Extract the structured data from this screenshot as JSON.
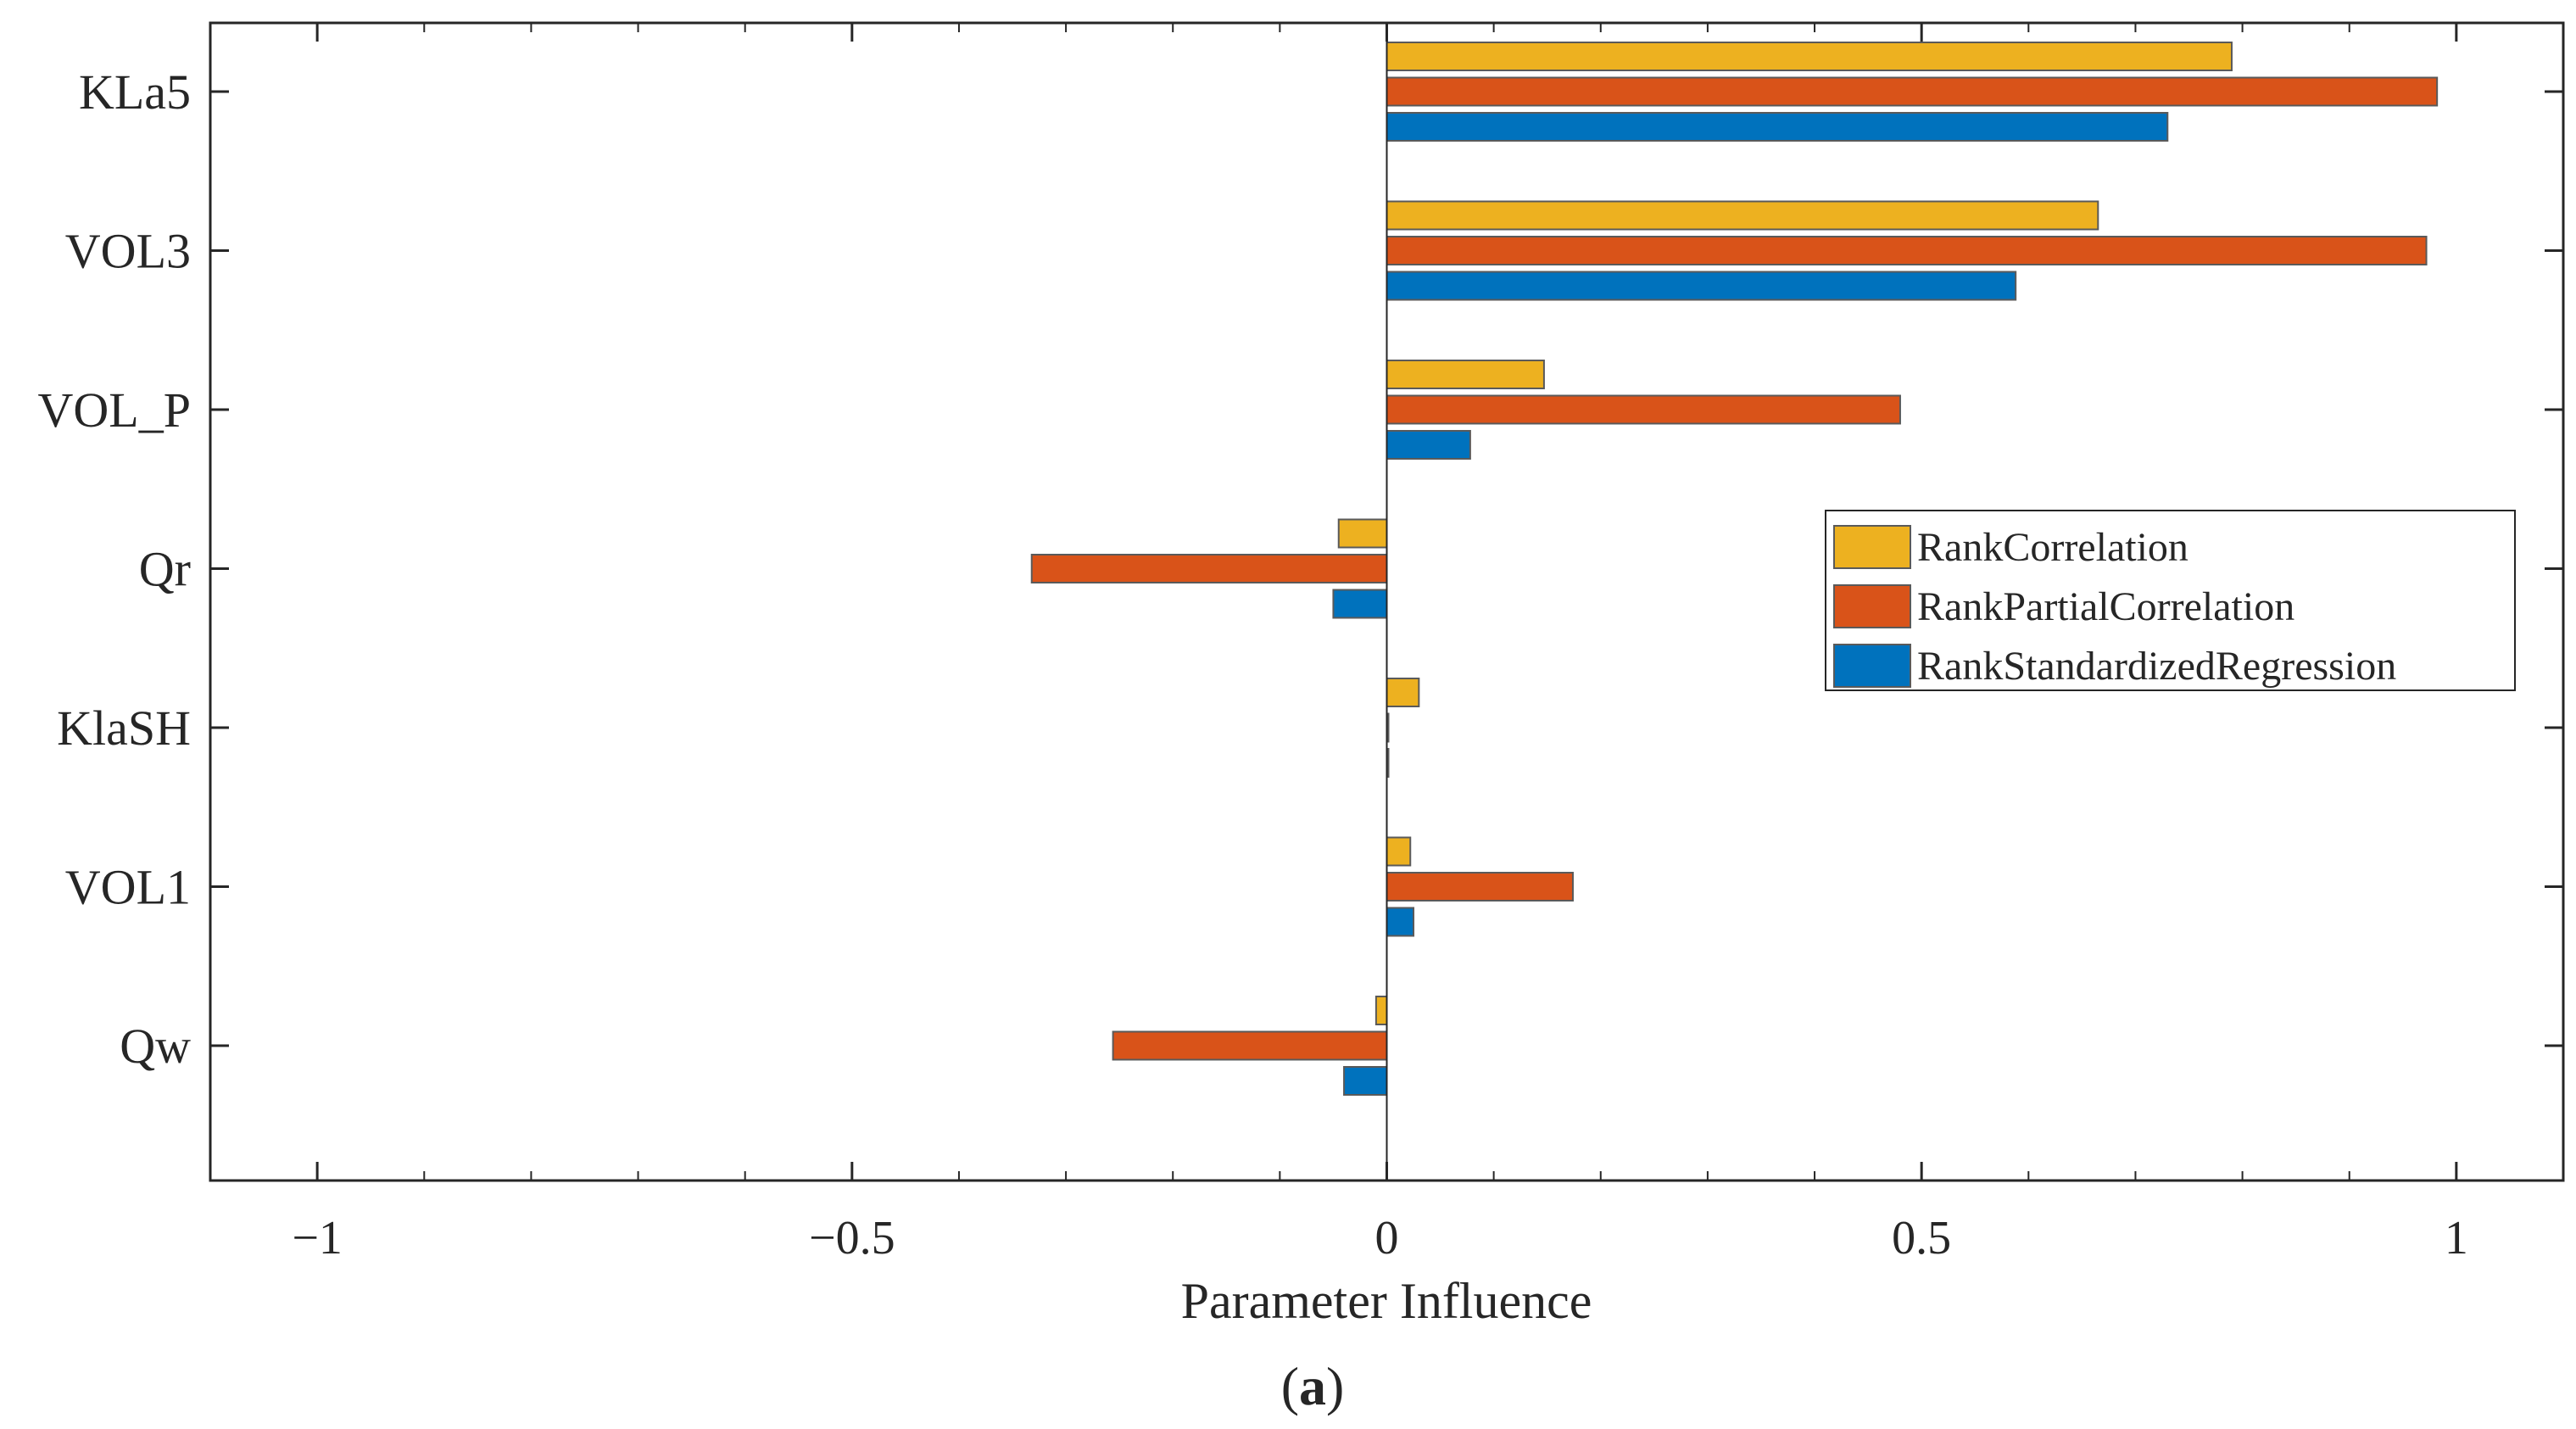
{
  "chart_data": {
    "type": "bar",
    "orientation": "horizontal",
    "title": "",
    "xlabel": "Parameter Influence",
    "ylabel": "",
    "caption": "(a)",
    "caption_letter": "a",
    "xlim": [
      -1.1,
      1.1
    ],
    "xticks": [
      -1,
      -0.5,
      0,
      0.5,
      1
    ],
    "xtick_labels": [
      "−1",
      "−0.5",
      "0",
      "0.5",
      "1"
    ],
    "grid": false,
    "legend_position": "top-right",
    "categories": [
      "KLa5",
      "VOL3",
      "VOL_P",
      "Qr",
      "KlaSH",
      "VOL1",
      "Qw"
    ],
    "series": [
      {
        "name": "RankCorrelation",
        "color": "#EDB120",
        "values": [
          0.79,
          0.665,
          0.147,
          -0.045,
          0.03,
          0.022,
          -0.01
        ]
      },
      {
        "name": "RankPartialCorrelation",
        "color": "#D95319",
        "values": [
          0.982,
          0.972,
          0.48,
          -0.332,
          0.0,
          0.174,
          -0.256
        ]
      },
      {
        "name": "RankStandardizedRegression",
        "color": "#0072BD",
        "values": [
          0.73,
          0.588,
          0.078,
          -0.05,
          0.0,
          0.025,
          -0.04
        ]
      }
    ]
  }
}
